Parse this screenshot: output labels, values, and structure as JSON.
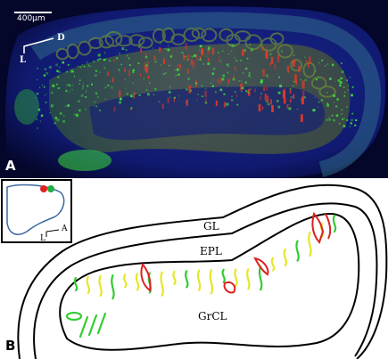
{
  "panel_a": {
    "label": "A",
    "scale_bar_text": "400μm",
    "orientation": {
      "dorsal": "D",
      "lateral": "L"
    },
    "colors": {
      "background": "#04062a",
      "tissue_blue": "#1a2aa0",
      "green_signal": "#3ddc3d",
      "red_signal": "#e83a2a",
      "yellow_band": "#8a8a2a"
    }
  },
  "panel_b": {
    "label": "B",
    "layers": {
      "gl": "GL",
      "epl": "EPL",
      "grcl": "GrCL"
    },
    "inset": {
      "anterior": "A",
      "lateral": "L",
      "dot_colors": [
        "#e02020",
        "#20b040"
      ]
    },
    "colors": {
      "outline": "#000000",
      "green": "#33cc33",
      "yellow": "#e6e62a",
      "red": "#dd2222"
    }
  }
}
